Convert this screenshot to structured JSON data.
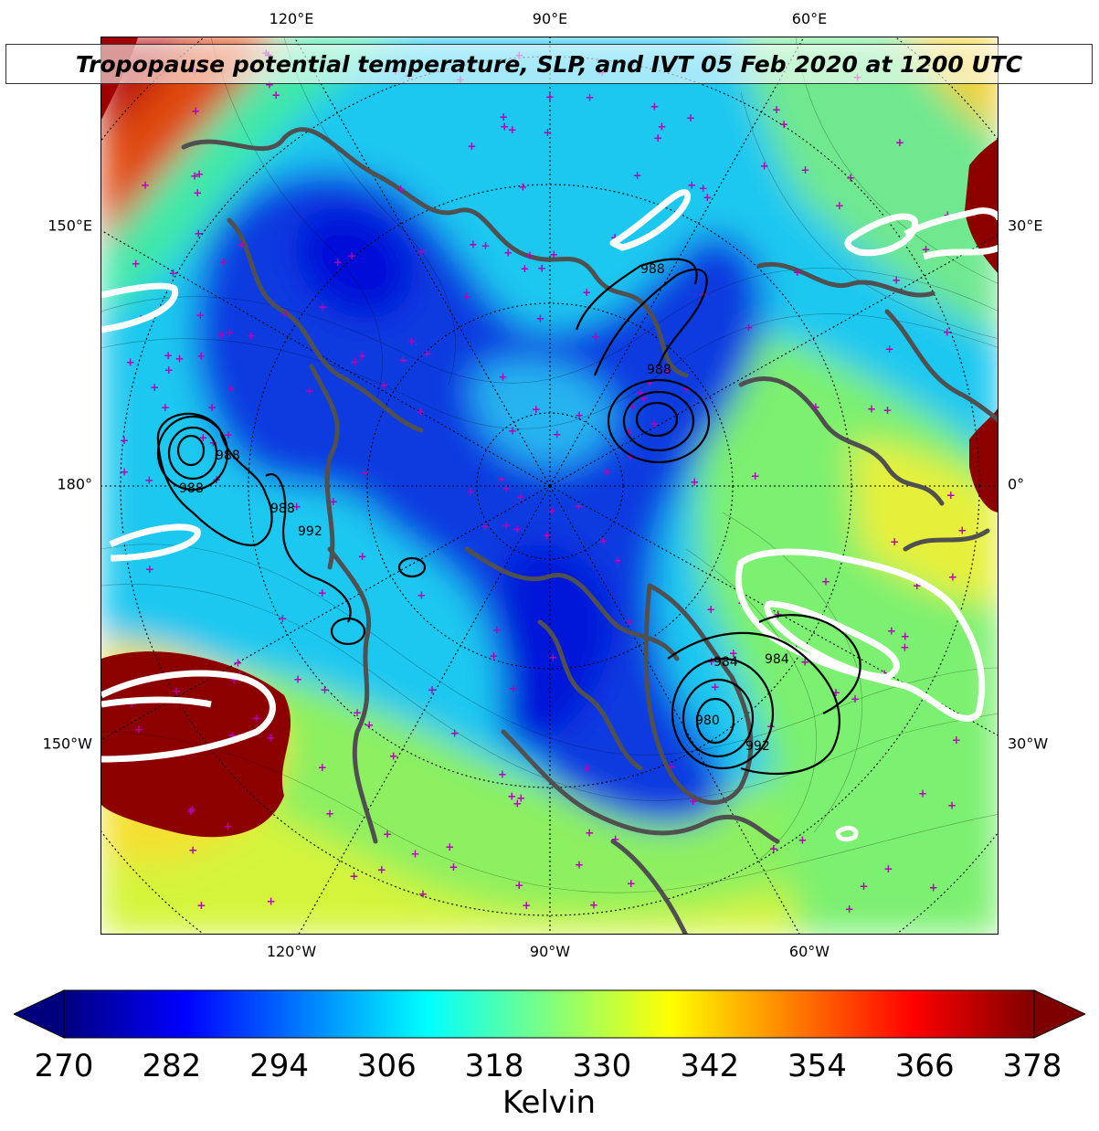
{
  "title": "Tropopause potential temperature, SLP, and IVT 05 Feb 2020 at 1200 UTC",
  "longitude_labels": {
    "top": [
      "120°E",
      "90°E",
      "60°E"
    ],
    "bottom": [
      "120°W",
      "90°W",
      "60°W"
    ],
    "left": [
      "150°E",
      "180°",
      "150°W"
    ],
    "right": [
      "30°E",
      "0°",
      "30°W"
    ]
  },
  "slp_contour_labels": [
    "988",
    "988",
    "988",
    "988",
    "992",
    "984",
    "988",
    "984",
    "980",
    "992"
  ],
  "colorbar": {
    "ticks": [
      "270",
      "282",
      "294",
      "306",
      "318",
      "330",
      "342",
      "354",
      "366",
      "378"
    ],
    "unit": "Kelvin",
    "colormap": "jet",
    "min": 270,
    "max": 378,
    "extend": "both",
    "stops": [
      "#00007f",
      "#0000ff",
      "#007fff",
      "#00ffff",
      "#7fff7f",
      "#ffff00",
      "#ff7f00",
      "#ff0000",
      "#7f0000"
    ]
  },
  "colors": {
    "coastline": "#505050",
    "station_marker": "#b400b4",
    "ivt_contour": "#ffffff",
    "slp_contour": "#000000"
  }
}
